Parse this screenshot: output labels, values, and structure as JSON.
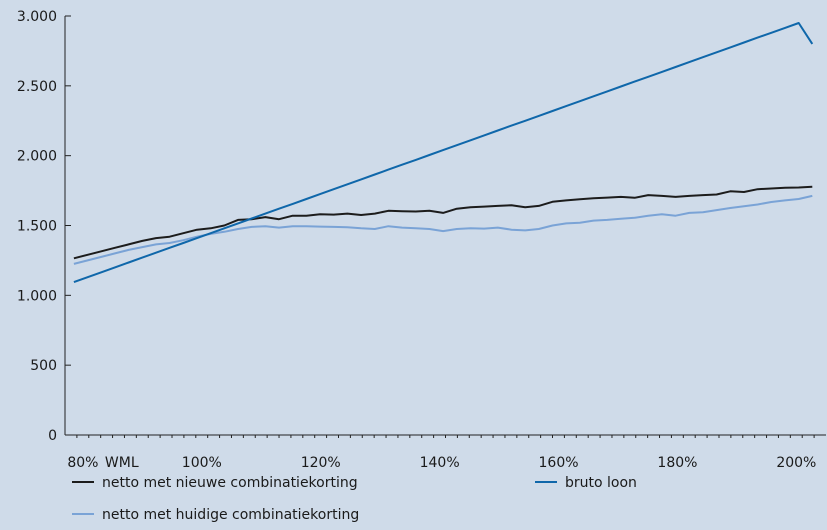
{
  "chart_data": {
    "type": "line",
    "title": "",
    "xlabel": "",
    "ylabel": "",
    "x": [
      79.5,
      81.8,
      84.1,
      86.4,
      88.7,
      91,
      93.3,
      95.6,
      97.9,
      100.2,
      102.5,
      104.8,
      107.1,
      109.4,
      111.7,
      114,
      116.3,
      118.6,
      120.9,
      123.2,
      125.5,
      127.8,
      130.1,
      132.4,
      134.7,
      137,
      139.3,
      141.6,
      143.9,
      146.2,
      148.5,
      150.8,
      153.1,
      155.4,
      157.7,
      160,
      162.3,
      164.6,
      166.9,
      169.2,
      171.5,
      173.8,
      176.1,
      178.4,
      180.7,
      183,
      185.3,
      187.6,
      189.9,
      192.2,
      194.5,
      196.8,
      199.1,
      201.4,
      203.7
    ],
    "series": [
      {
        "name": "netto met nieuwe combinatiekorting",
        "color": "#1c1c1c",
        "values": [
          1265,
          1290,
          1315,
          1340,
          1365,
          1390,
          1410,
          1420,
          1445,
          1470,
          1480,
          1500,
          1540,
          1545,
          1560,
          1545,
          1570,
          1570,
          1580,
          1578,
          1585,
          1575,
          1585,
          1605,
          1602,
          1600,
          1605,
          1590,
          1620,
          1630,
          1635,
          1640,
          1645,
          1630,
          1640,
          1670,
          1680,
          1688,
          1695,
          1700,
          1705,
          1698,
          1718,
          1712,
          1705,
          1712,
          1718,
          1722,
          1745,
          1740,
          1760,
          1765,
          1770,
          1772,
          1778
        ]
      },
      {
        "name": "netto met huidige combinatiekorting",
        "color": "#7aa3d6",
        "values": [
          1225,
          1250,
          1275,
          1300,
          1325,
          1345,
          1365,
          1375,
          1395,
          1420,
          1440,
          1455,
          1475,
          1490,
          1495,
          1485,
          1495,
          1495,
          1492,
          1490,
          1488,
          1480,
          1475,
          1495,
          1485,
          1480,
          1475,
          1460,
          1475,
          1480,
          1478,
          1485,
          1470,
          1465,
          1475,
          1500,
          1515,
          1520,
          1535,
          1540,
          1548,
          1555,
          1570,
          1580,
          1570,
          1590,
          1595,
          1610,
          1625,
          1638,
          1650,
          1668,
          1680,
          1690,
          1712
        ]
      },
      {
        "name": "bruto loon",
        "color": "#0f67aa",
        "values": [
          1095,
          1130,
          1165,
          1200,
          1235,
          1270,
          1305,
          1340,
          1375,
          1410,
          1445,
          1480,
          1515,
          1550,
          1585,
          1620,
          1655,
          1690,
          1725,
          1760,
          1795,
          1830,
          1865,
          1900,
          1935,
          1970,
          2005,
          2040,
          2075,
          2110,
          2145,
          2180,
          2215,
          2250,
          2285,
          2320,
          2355,
          2390,
          2425,
          2460,
          2495,
          2530,
          2565,
          2600,
          2635,
          2670,
          2705,
          2740,
          2775,
          2810,
          2845,
          2880,
          2915,
          2950,
          2800
        ]
      }
    ],
    "ylim": [
      0,
      3000
    ],
    "yticks": [
      0,
      500,
      1000,
      1500,
      2000,
      2500,
      3000
    ],
    "ytick_labels": [
      "0",
      "500",
      "1.000",
      "1.500",
      "2.000",
      "2.500",
      "3.000"
    ],
    "xlim": [
      78,
      206
    ],
    "xticks": [
      80,
      100,
      120,
      140,
      160,
      180,
      200
    ],
    "xtick_labels": [
      "80%",
      "100%",
      "120%",
      "140%",
      "160%",
      "180%",
      "200%"
    ],
    "x_extra_label": "WML",
    "grid": false,
    "legend_position": "bottom"
  }
}
